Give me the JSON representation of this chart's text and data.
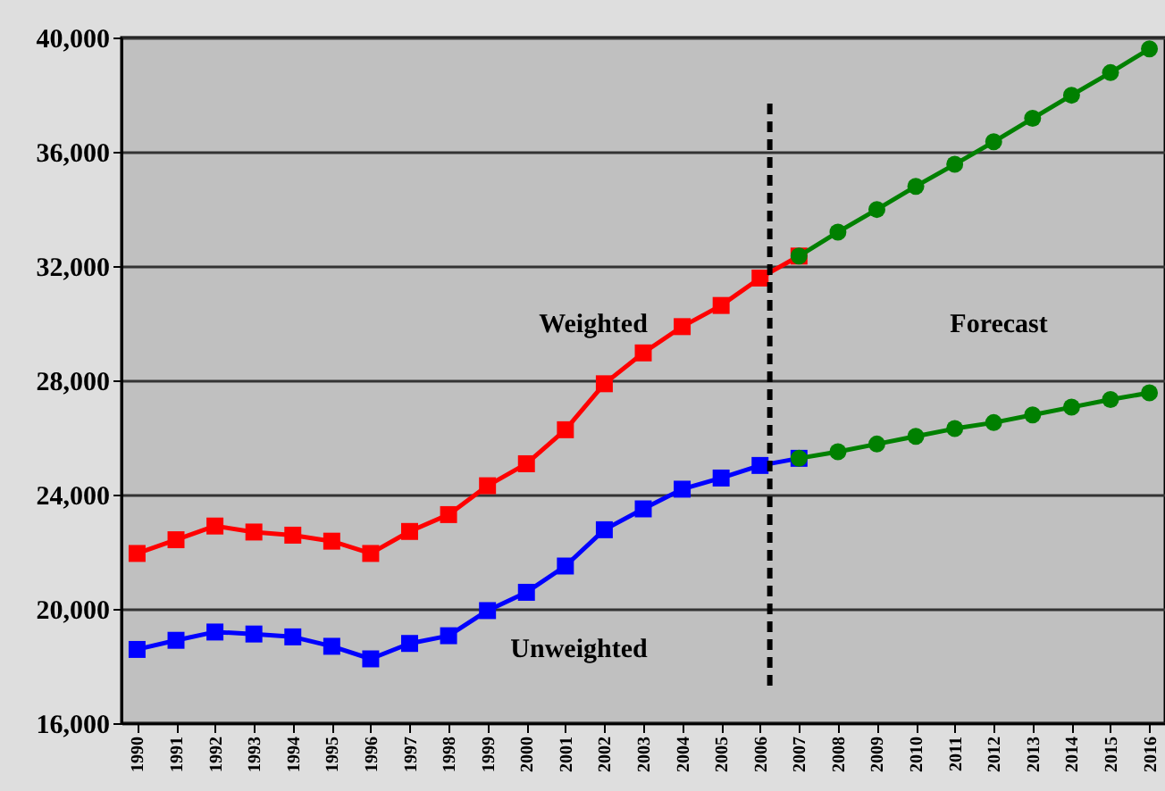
{
  "chart_data": {
    "type": "line",
    "x": [
      1990,
      1991,
      1992,
      1993,
      1994,
      1995,
      1996,
      1997,
      1998,
      1999,
      2000,
      2001,
      2002,
      2003,
      2004,
      2005,
      2006,
      2007
    ],
    "series": [
      {
        "color": "#ff0000",
        "marker": "square",
        "values": [
          21940,
          22420,
          22900,
          22690,
          22580,
          22370,
          21940,
          22710,
          23300,
          24310,
          25080,
          26270,
          27880,
          28960,
          29880,
          30620,
          31580,
          32350
        ]
      },
      {
        "color": "#0000ff",
        "marker": "square",
        "values": [
          18580,
          18900,
          19190,
          19120,
          19020,
          18690,
          18250,
          18790,
          19060,
          19940,
          20580,
          21500,
          22770,
          23500,
          24190,
          24580,
          25020,
          25270
        ]
      },
      {
        "color": "#008000",
        "marker": "circle",
        "x": [
          2007,
          2008,
          2009,
          2010,
          2011,
          2012,
          2013,
          2014,
          2015,
          2016
        ],
        "values": [
          32350,
          33190,
          33980,
          34790,
          35560,
          36350,
          37170,
          37980,
          38770,
          39600
        ]
      },
      {
        "color": "#008000",
        "marker": "circle",
        "x": [
          2007,
          2008,
          2009,
          2010,
          2011,
          2012,
          2013,
          2014,
          2015,
          2016
        ],
        "values": [
          25270,
          25500,
          25770,
          26040,
          26310,
          26520,
          26790,
          27060,
          27330,
          27560
        ]
      }
    ],
    "xlim": [
      1989.6,
      2016.4
    ],
    "xticks": [
      1990,
      1991,
      1992,
      1993,
      1994,
      1995,
      1996,
      1997,
      1998,
      1999,
      2000,
      2001,
      2002,
      2003,
      2004,
      2005,
      2006,
      2007,
      2008,
      2009,
      2010,
      2011,
      2012,
      2013,
      2014,
      2015,
      2016
    ],
    "ylim": [
      16000,
      40000
    ],
    "yticks": [
      {
        "value": 16000,
        "label": "16,000"
      },
      {
        "value": 20000,
        "label": "20,000"
      },
      {
        "value": 24000,
        "label": "24,000"
      },
      {
        "value": 28000,
        "label": "28,000"
      },
      {
        "value": 32000,
        "label": "32,000"
      },
      {
        "value": 36000,
        "label": "36,000"
      },
      {
        "value": 40000,
        "label": "40,000"
      }
    ],
    "grid": "y",
    "ref_lines": [
      {
        "axis": "x",
        "value": 2006.25,
        "color": "#000000",
        "line_style": "dashed"
      }
    ],
    "annotations": [
      "Weighted",
      "Unweighted",
      "Forecast"
    ]
  }
}
